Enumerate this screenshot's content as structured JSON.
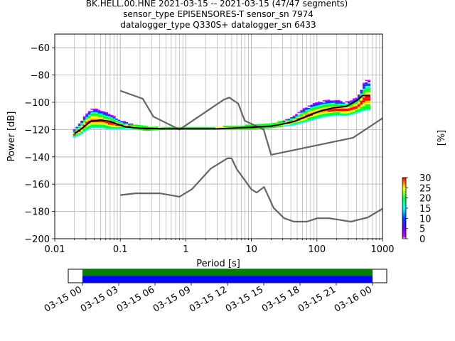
{
  "header": {
    "line1": "BK.HELL.00.HNE   2021-03-15 -- 2021-03-15  (47/47 segments)",
    "line2": "sensor_type EPISENSORES-T sensor_sn 7974",
    "line3": "datalogger_type Q330S+ datalogger_sn 6433"
  },
  "chart_data": [
    {
      "type": "heatmap",
      "title": "",
      "xlabel": "Period [s]",
      "ylabel": "Power [dB]",
      "xscale": "log",
      "xlim": [
        0.01,
        1000
      ],
      "ylim": [
        -200,
        -50
      ],
      "grid": true,
      "x_ticks": [
        {
          "value": 0.01,
          "label": "0.01"
        },
        {
          "value": 0.1,
          "label": "0.1"
        },
        {
          "value": 1,
          "label": "1"
        },
        {
          "value": 10,
          "label": "10"
        },
        {
          "value": 100,
          "label": "100"
        },
        {
          "value": 1000,
          "label": "1000"
        }
      ],
      "y_ticks": [
        {
          "value": -60,
          "label": "−60"
        },
        {
          "value": -80,
          "label": "−80"
        },
        {
          "value": -100,
          "label": "−100"
        },
        {
          "value": -120,
          "label": "−120"
        },
        {
          "value": -140,
          "label": "−140"
        },
        {
          "value": -160,
          "label": "−160"
        },
        {
          "value": -180,
          "label": "−180"
        },
        {
          "value": -200,
          "label": "−200"
        }
      ],
      "series": [
        {
          "role": "noise-model-high",
          "color": "#666666",
          "points": [
            [
              0.1,
              -91.5
            ],
            [
              0.22,
              -97.4
            ],
            [
              0.32,
              -110.5
            ],
            [
              0.8,
              -120
            ],
            [
              3.8,
              -98
            ],
            [
              4.6,
              -96.5
            ],
            [
              6.3,
              -101
            ],
            [
              7.9,
              -113.5
            ],
            [
              15.4,
              -120
            ],
            [
              20,
              -138.5
            ],
            [
              354.8,
              -126
            ],
            [
              10000,
              -80
            ]
          ]
        },
        {
          "role": "noise-model-low",
          "color": "#666666",
          "points": [
            [
              0.1,
              -168
            ],
            [
              0.17,
              -166.7
            ],
            [
              0.4,
              -166.7
            ],
            [
              0.8,
              -169.2
            ],
            [
              1.24,
              -163.7
            ],
            [
              2.4,
              -148.6
            ],
            [
              4.3,
              -141.1
            ],
            [
              5,
              -141.1
            ],
            [
              6,
              -149
            ],
            [
              10,
              -163.8
            ],
            [
              12,
              -166.2
            ],
            [
              15.6,
              -162.1
            ],
            [
              21.9,
              -177.5
            ],
            [
              31.6,
              -185
            ],
            [
              45,
              -187.5
            ],
            [
              70,
              -187.5
            ],
            [
              101,
              -185
            ],
            [
              154,
              -185
            ],
            [
              328,
              -187.5
            ],
            [
              600,
              -184.4
            ],
            [
              1000,
              -178
            ]
          ]
        },
        {
          "role": "mode",
          "color": "#000000",
          "points": [
            [
              0.02,
              -123
            ],
            [
              0.028,
              -118
            ],
            [
              0.035,
              -114
            ],
            [
              0.05,
              -113
            ],
            [
              0.07,
              -114
            ],
            [
              0.09,
              -116
            ],
            [
              0.12,
              -118
            ],
            [
              0.2,
              -119
            ],
            [
              0.5,
              -119.5
            ],
            [
              1,
              -119.5
            ],
            [
              3,
              -119.5
            ],
            [
              5,
              -119
            ],
            [
              8,
              -118.5
            ],
            [
              12,
              -118
            ],
            [
              20,
              -117.5
            ],
            [
              30,
              -116
            ],
            [
              45,
              -114
            ],
            [
              65,
              -111
            ],
            [
              90,
              -108
            ],
            [
              120,
              -106
            ],
            [
              180,
              -104
            ],
            [
              280,
              -103
            ],
            [
              400,
              -99
            ],
            [
              500,
              -95
            ],
            [
              650,
              -95
            ]
          ]
        }
      ],
      "density": {
        "colormap": "pqlx",
        "band_ranges": [
          [
            0.02,
            -126,
            -120
          ],
          [
            0.025,
            -124,
            -114
          ],
          [
            0.03,
            -121,
            -108
          ],
          [
            0.037,
            -119,
            -104
          ],
          [
            0.045,
            -119,
            -104
          ],
          [
            0.055,
            -119,
            -106
          ],
          [
            0.065,
            -120,
            -107
          ],
          [
            0.08,
            -120,
            -110
          ],
          [
            0.1,
            -120,
            -113
          ],
          [
            0.13,
            -120,
            -115
          ],
          [
            0.18,
            -120,
            -117
          ],
          [
            0.25,
            -121,
            -118
          ],
          [
            0.5,
            -120,
            -119
          ],
          [
            1,
            -120,
            -119
          ],
          [
            5,
            -120,
            -118
          ],
          [
            10,
            -120,
            -117
          ],
          [
            20,
            -119,
            -116
          ],
          [
            30,
            -118,
            -114
          ],
          [
            45,
            -117,
            -110
          ],
          [
            65,
            -115,
            -104
          ],
          [
            90,
            -113,
            -100
          ],
          [
            130,
            -111,
            -98
          ],
          [
            200,
            -110,
            -98
          ],
          [
            300,
            -110,
            -99
          ],
          [
            420,
            -108,
            -96
          ],
          [
            550,
            -106,
            -82
          ],
          [
            680,
            -106,
            -82
          ]
        ]
      }
    },
    {
      "type": "colorbar",
      "label": "[%]",
      "range": [
        0,
        30
      ],
      "ticks": [
        "0",
        "5",
        "10",
        "15",
        "20",
        "25",
        "30"
      ]
    },
    {
      "type": "timeline",
      "tick_labels": [
        "03-15 00",
        "03-15 03",
        "03-15 06",
        "03-15 09",
        "03-15 12",
        "03-15 15",
        "03-15 18",
        "03-15 21",
        "03-16 00"
      ],
      "bars": [
        {
          "color": "#008000",
          "start": "03-15 00",
          "end": "03-16 00"
        },
        {
          "color": "#0000ff",
          "start": "03-15 00",
          "end": "03-16 00"
        }
      ]
    }
  ]
}
